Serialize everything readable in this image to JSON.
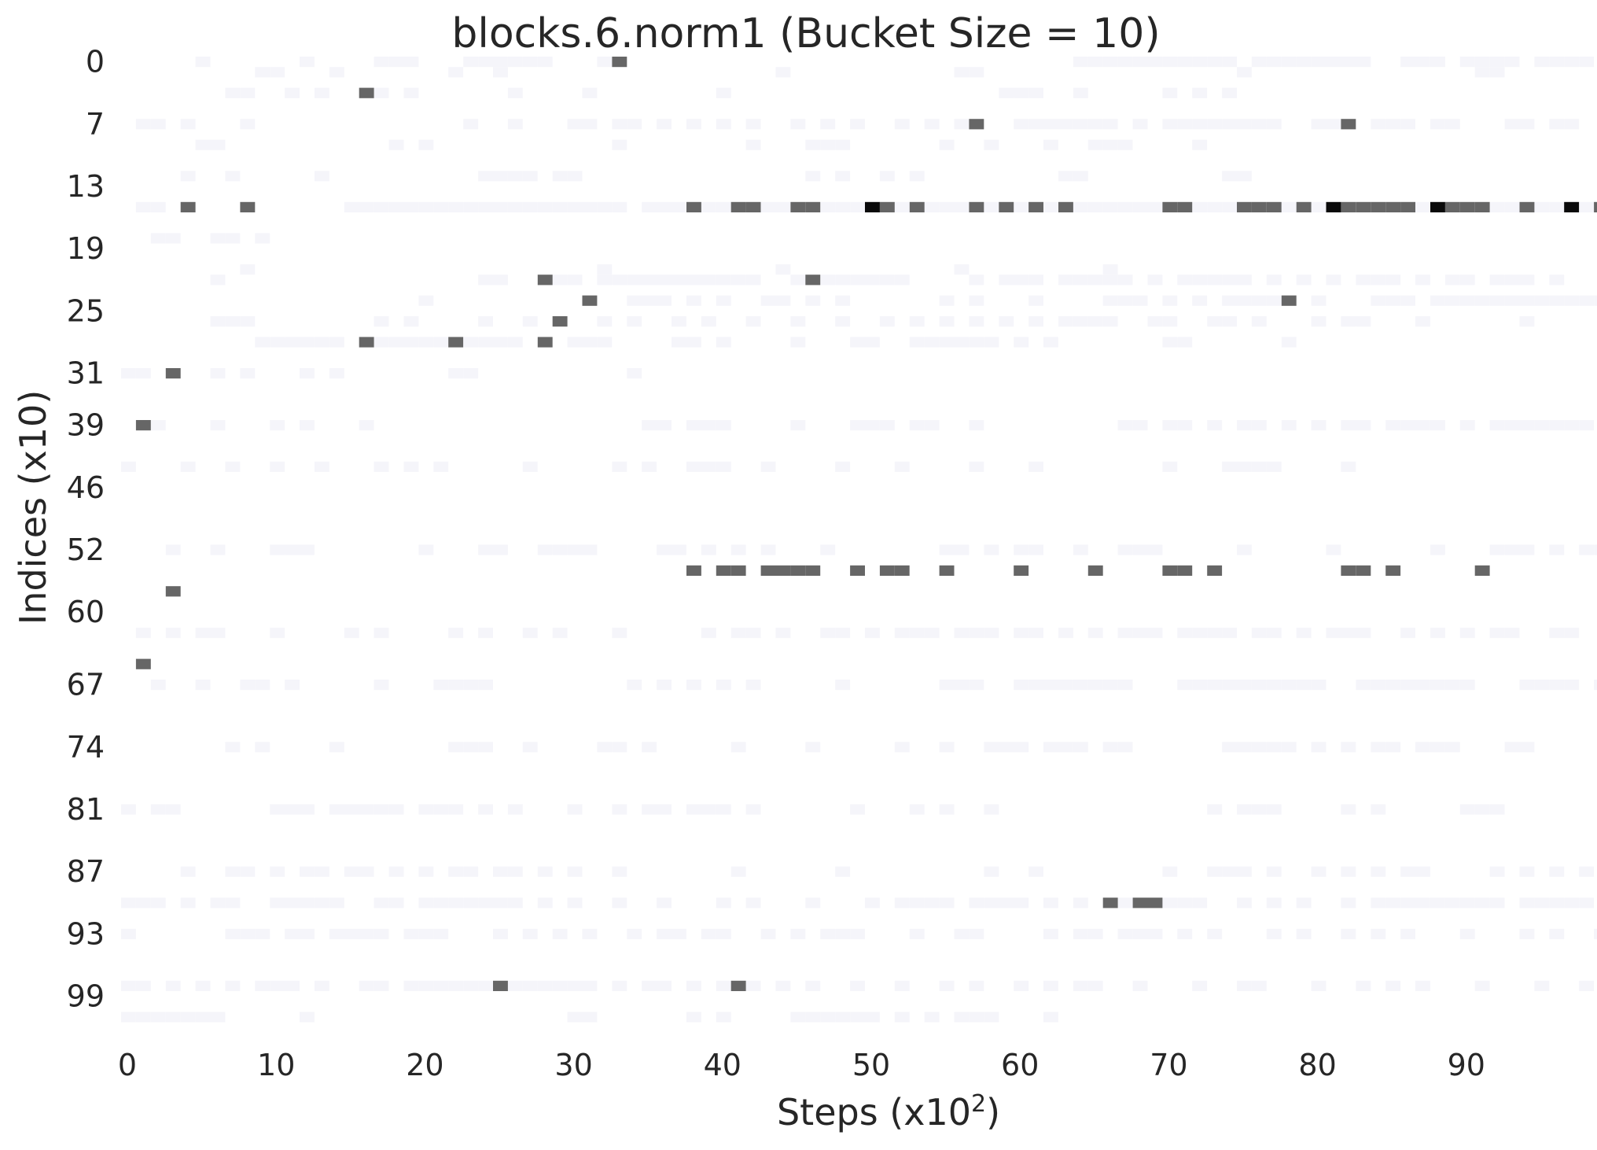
{
  "chart_data": {
    "type": "heatmap",
    "title": "blocks.6.norm1 (Bucket Size = 10)",
    "xlabel": "Steps (x10",
    "xlabel_superscript": "2",
    "xlabel_suffix": ")",
    "ylabel": "Indices (x10)",
    "x_range": [
      0,
      100
    ],
    "y_range": [
      0,
      104
    ],
    "x_tick_labels": [
      "0",
      "10",
      "20",
      "30",
      "40",
      "50",
      "60",
      "70",
      "80",
      "90"
    ],
    "x_tick_values": [
      0,
      10,
      20,
      30,
      40,
      50,
      60,
      70,
      80,
      90
    ],
    "y_tick_labels": [
      "0",
      "7",
      "13",
      "19",
      "25",
      "31",
      "39",
      "46",
      "52",
      "60",
      "67",
      "74",
      "81",
      "87",
      "93",
      "99"
    ],
    "y_tick_rows": [
      0,
      6,
      12,
      18,
      24,
      30,
      35,
      41,
      47,
      53,
      60,
      66,
      72,
      78,
      84,
      90
    ],
    "colors": {
      "dark": "#666666",
      "darkest": "#0a0a0a",
      "faint": "#f5f5fa",
      "background": "#ffffff"
    },
    "cells_dark": [
      [
        33,
        0
      ],
      [
        16,
        3
      ],
      [
        57,
        6
      ],
      [
        82,
        6
      ],
      [
        4,
        14
      ],
      [
        8,
        14
      ],
      [
        38,
        14
      ],
      [
        41,
        14
      ],
      [
        42,
        14
      ],
      [
        45,
        14
      ],
      [
        46,
        14
      ],
      [
        51,
        14
      ],
      [
        53,
        14
      ],
      [
        57,
        14
      ],
      [
        59,
        14
      ],
      [
        61,
        14
      ],
      [
        63,
        14
      ],
      [
        70,
        14
      ],
      [
        71,
        14
      ],
      [
        75,
        14
      ],
      [
        76,
        14
      ],
      [
        77,
        14
      ],
      [
        79,
        14
      ],
      [
        82,
        14
      ],
      [
        83,
        14
      ],
      [
        84,
        14
      ],
      [
        85,
        14
      ],
      [
        86,
        14
      ],
      [
        89,
        14
      ],
      [
        90,
        14
      ],
      [
        91,
        14
      ],
      [
        94,
        14
      ],
      [
        99,
        14
      ],
      [
        28,
        21
      ],
      [
        46,
        21
      ],
      [
        31,
        23
      ],
      [
        78,
        23
      ],
      [
        29,
        25
      ],
      [
        16,
        27
      ],
      [
        22,
        27
      ],
      [
        28,
        27
      ],
      [
        3,
        30
      ],
      [
        1,
        35
      ],
      [
        38,
        49
      ],
      [
        40,
        49
      ],
      [
        41,
        49
      ],
      [
        43,
        49
      ],
      [
        44,
        49
      ],
      [
        45,
        49
      ],
      [
        46,
        49
      ],
      [
        49,
        49
      ],
      [
        51,
        49
      ],
      [
        52,
        49
      ],
      [
        55,
        49
      ],
      [
        60,
        49
      ],
      [
        65,
        49
      ],
      [
        70,
        49
      ],
      [
        71,
        49
      ],
      [
        73,
        49
      ],
      [
        82,
        49
      ],
      [
        83,
        49
      ],
      [
        85,
        49
      ],
      [
        91,
        49
      ],
      [
        3,
        51
      ],
      [
        1,
        58
      ],
      [
        66,
        81
      ],
      [
        68,
        81
      ],
      [
        69,
        81
      ],
      [
        25,
        89
      ],
      [
        41,
        89
      ]
    ],
    "cells_darkest": [
      [
        50,
        14
      ],
      [
        81,
        14
      ],
      [
        88,
        14
      ],
      [
        97,
        14
      ]
    ],
    "cells_faint_rows": [
      [
        0,
        [
          5,
          12,
          17,
          18,
          19,
          23,
          24,
          25,
          26,
          27,
          28,
          32,
          33,
          64,
          65,
          66,
          67,
          68,
          69,
          70,
          71,
          72,
          73,
          74,
          76,
          77,
          78,
          79,
          80,
          81,
          82,
          83,
          86,
          87,
          88,
          90,
          91,
          92,
          93,
          95,
          96,
          97,
          98
        ]
      ],
      [
        1,
        [
          9,
          10,
          14,
          22,
          25,
          44,
          56,
          57,
          75,
          91,
          92
        ]
      ],
      [
        3,
        [
          7,
          8,
          11,
          13,
          17,
          19,
          26,
          31,
          40,
          59,
          60,
          61,
          64,
          70,
          72,
          74
        ]
      ],
      [
        6,
        [
          1,
          2,
          4,
          8,
          23,
          26,
          30,
          31,
          33,
          34,
          36,
          38,
          40,
          42,
          45,
          47,
          49,
          52,
          54,
          56,
          60,
          61,
          62,
          63,
          64,
          65,
          66,
          68,
          70,
          71,
          72,
          73,
          74,
          75,
          76,
          77,
          80,
          81,
          84,
          85,
          86,
          88,
          89,
          93,
          94,
          96,
          97
        ]
      ],
      [
        8,
        [
          5,
          6,
          18,
          20,
          33,
          42,
          46,
          47,
          48,
          55,
          58,
          62,
          65,
          66,
          67,
          72
        ]
      ],
      [
        11,
        [
          4,
          7,
          13,
          24,
          25,
          26,
          27,
          29,
          30,
          46,
          48,
          51,
          53,
          63,
          64,
          74,
          75
        ]
      ],
      [
        14,
        [
          1,
          2,
          15,
          16,
          17,
          18,
          19,
          20,
          21,
          22,
          23,
          24,
          25,
          26,
          27,
          28,
          29,
          30,
          31,
          32,
          33,
          35,
          36,
          37,
          39,
          40,
          43,
          44,
          47,
          48,
          49,
          52,
          54,
          55,
          56,
          58,
          60,
          62,
          64,
          65,
          66,
          67,
          68,
          69,
          72,
          73,
          74,
          78,
          80,
          87,
          92,
          93,
          95,
          96,
          98
        ]
      ],
      [
        17,
        [
          2,
          3,
          6,
          7,
          9
        ]
      ],
      [
        20,
        [
          8,
          32,
          44,
          56,
          66
        ]
      ],
      [
        21,
        [
          6,
          24,
          25,
          29,
          30,
          32,
          33,
          34,
          35,
          36,
          37,
          38,
          39,
          40,
          41,
          42,
          45,
          47,
          48,
          49,
          50,
          51,
          52,
          57,
          59,
          60,
          61,
          63,
          64,
          65,
          66,
          67,
          69,
          71,
          72,
          73,
          74,
          75,
          77,
          79,
          81,
          83,
          84,
          85,
          87,
          89,
          90,
          92,
          93,
          94,
          96
        ]
      ],
      [
        23,
        [
          20,
          34,
          35,
          36,
          38,
          40,
          43,
          44,
          46,
          48,
          55,
          57,
          61,
          66,
          67,
          68,
          70,
          72,
          74,
          75,
          76,
          77,
          80,
          84,
          85,
          86,
          88,
          89,
          90,
          91,
          92,
          93,
          94,
          95,
          96,
          97,
          98,
          99
        ]
      ],
      [
        25,
        [
          6,
          7,
          8,
          17,
          19,
          24,
          27,
          32,
          34,
          37,
          39,
          42,
          45,
          48,
          51,
          53,
          55,
          57,
          59,
          61,
          63,
          64,
          65,
          66,
          69,
          70,
          73,
          74,
          76,
          80,
          82,
          83,
          87,
          94
        ]
      ],
      [
        27,
        [
          9,
          10,
          11,
          12,
          13,
          14,
          17,
          18,
          19,
          20,
          21,
          23,
          24,
          25,
          26,
          30,
          31,
          32,
          37,
          38,
          40,
          45,
          49,
          50,
          53,
          54,
          55,
          56,
          57,
          58,
          60,
          62,
          70,
          71,
          78
        ]
      ],
      [
        30,
        [
          0,
          1,
          6,
          8,
          12,
          14,
          22,
          23,
          34
        ]
      ],
      [
        35,
        [
          2,
          6,
          10,
          12,
          16,
          35,
          36,
          38,
          39,
          40,
          45,
          49,
          50,
          51,
          53,
          54,
          57,
          67,
          68,
          70,
          71,
          73,
          75,
          76,
          78,
          80,
          82,
          83,
          85,
          86,
          87,
          88,
          90,
          92,
          93,
          94,
          95,
          96,
          97,
          98
        ]
      ],
      [
        39,
        [
          0,
          4,
          7,
          10,
          13,
          17,
          19,
          21,
          27,
          33,
          35,
          38,
          39,
          40,
          43,
          48,
          52,
          57,
          61,
          70,
          74,
          75,
          76,
          77,
          82
        ]
      ],
      [
        47,
        [
          3,
          6,
          10,
          11,
          12,
          20,
          24,
          25,
          28,
          29,
          30,
          31,
          36,
          37,
          39,
          41,
          43,
          47,
          55,
          56,
          58,
          60,
          61,
          64,
          67,
          68,
          69,
          75,
          81,
          88,
          92,
          93,
          94,
          96,
          98,
          99
        ]
      ],
      [
        55,
        [
          1,
          3,
          5,
          6,
          10,
          15,
          17,
          22,
          24,
          27,
          29,
          33,
          39,
          41,
          42,
          44,
          47,
          48,
          50,
          52,
          53,
          54,
          56,
          57,
          58,
          60,
          61,
          63,
          65,
          67,
          68,
          69,
          71,
          72,
          73,
          74,
          76,
          77,
          79,
          81,
          82,
          83,
          86,
          88,
          90,
          92,
          93,
          96,
          97
        ]
      ],
      [
        60,
        [
          2,
          5,
          8,
          9,
          11,
          17,
          21,
          22,
          23,
          24,
          34,
          36,
          38,
          40,
          42,
          48,
          55,
          56,
          57,
          60,
          61,
          62,
          63,
          64,
          65,
          66,
          67,
          71,
          72,
          73,
          74,
          75,
          76,
          77,
          78,
          79,
          80,
          83,
          84,
          85,
          86,
          87,
          88,
          89,
          90,
          94,
          95,
          96,
          97,
          99
        ]
      ],
      [
        66,
        [
          7,
          9,
          14,
          22,
          23,
          24,
          27,
          32,
          33,
          35,
          41,
          46,
          52,
          55,
          58,
          59,
          60,
          62,
          63,
          64,
          66,
          67,
          74,
          75,
          76,
          77,
          78,
          80,
          82,
          84,
          85,
          87,
          88,
          89,
          93,
          94
        ]
      ],
      [
        72,
        [
          0,
          2,
          3,
          10,
          11,
          12,
          14,
          15,
          16,
          17,
          18,
          20,
          21,
          22,
          24,
          26,
          30,
          33,
          35,
          36,
          38,
          39,
          40,
          42,
          49,
          53,
          55,
          58,
          73,
          75,
          76,
          77,
          82,
          84,
          90,
          91,
          92
        ]
      ],
      [
        78,
        [
          4,
          7,
          8,
          10,
          12,
          13,
          15,
          16,
          18,
          20,
          22,
          23,
          25,
          26,
          28,
          30,
          33,
          41,
          48,
          58,
          61,
          70,
          73,
          74,
          75,
          77,
          80,
          82,
          84,
          86,
          87,
          92,
          94,
          96,
          98
        ]
      ],
      [
        81,
        [
          0,
          1,
          2,
          4,
          6,
          7,
          10,
          11,
          12,
          13,
          14,
          17,
          18,
          20,
          21,
          22,
          23,
          24,
          25,
          26,
          28,
          30,
          33,
          36,
          40,
          42,
          46,
          50,
          52,
          53,
          54,
          55,
          57,
          58,
          59,
          60,
          62,
          64,
          67,
          70,
          71,
          72,
          75,
          77,
          79,
          82,
          84,
          85,
          86,
          87,
          88,
          89,
          90,
          91,
          92,
          94,
          95,
          96,
          97,
          98
        ]
      ],
      [
        84,
        [
          0,
          7,
          8,
          9,
          11,
          12,
          14,
          15,
          16,
          17,
          19,
          20,
          21,
          25,
          27,
          29,
          31,
          34,
          36,
          37,
          39,
          40,
          43,
          45,
          47,
          48,
          49,
          53,
          56,
          57,
          62,
          64,
          65,
          67,
          68,
          69,
          71,
          73,
          77,
          79,
          82,
          84,
          86,
          90,
          94,
          96,
          99
        ]
      ],
      [
        89,
        [
          0,
          1,
          3,
          5,
          7,
          9,
          10,
          11,
          13,
          16,
          17,
          19,
          20,
          21,
          22,
          23,
          24,
          26,
          27,
          28,
          29,
          30,
          31,
          33,
          35,
          36,
          38,
          40,
          42,
          44,
          46,
          49,
          52,
          55,
          57,
          60,
          62,
          64,
          65,
          68,
          72,
          75,
          76,
          80,
          83,
          85,
          87,
          91,
          95,
          98
        ]
      ],
      [
        92,
        [
          0,
          1,
          2,
          3,
          4,
          5,
          6,
          12,
          30,
          31,
          38,
          40,
          45,
          46,
          47,
          48,
          49,
          50,
          52,
          54,
          56,
          57,
          58,
          62
        ]
      ]
    ]
  }
}
